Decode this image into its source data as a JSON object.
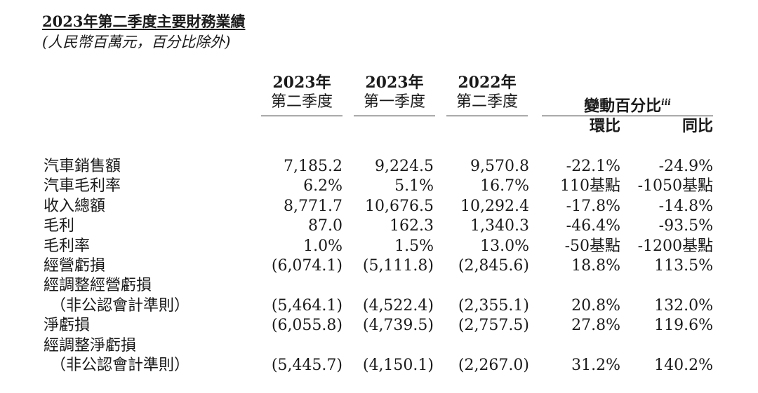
{
  "title": "2023年第二季度主要財務業績",
  "subtitle": "(人民幣百萬元，百分比除外)",
  "columns": [
    {
      "year": "2023年",
      "quarter": "第二季度"
    },
    {
      "year": "2023年",
      "quarter": "第一季度"
    },
    {
      "year": "2022年",
      "quarter": "第二季度"
    }
  ],
  "variance": {
    "label": "變動百分比",
    "note": "iii",
    "qoq": "環比",
    "yoy": "同比"
  },
  "rows": [
    {
      "label": "汽車銷售額",
      "values": [
        "7,185.2",
        "9,224.5",
        "9,570.8",
        "-22.1%",
        "-24.9%"
      ]
    },
    {
      "label": "汽車毛利率",
      "values": [
        "6.2%",
        "5.1%",
        "16.7%",
        "110基點",
        "-1050基點"
      ]
    },
    {
      "label": "收入總額",
      "values": [
        "8,771.7",
        "10,676.5",
        "10,292.4",
        "-17.8%",
        "-14.8%"
      ]
    },
    {
      "label": "毛利",
      "values": [
        "87.0",
        "162.3",
        "1,340.3",
        "-46.4%",
        "-93.5%"
      ]
    },
    {
      "label": "毛利率",
      "values": [
        "1.0%",
        "1.5%",
        "13.0%",
        "-50基點",
        "-1200基點"
      ]
    },
    {
      "label": "經營虧損",
      "values": [
        "(6,074.1)",
        "(5,111.8)",
        "(2,845.6)",
        "18.8%",
        "113.5%"
      ]
    },
    {
      "label": "經調整經營虧損",
      "values": [
        "",
        "",
        "",
        "",
        ""
      ]
    },
    {
      "label": "（非公認會計準則）",
      "values": [
        "(5,464.1)",
        "(4,522.4)",
        "(2,355.1)",
        "20.8%",
        "132.0%"
      ]
    },
    {
      "label": "淨虧損",
      "values": [
        "(6,055.8)",
        "(4,739.5)",
        "(2,757.5)",
        "27.8%",
        "119.6%"
      ]
    },
    {
      "label": "經調整淨虧損",
      "values": [
        "",
        "",
        "",
        "",
        ""
      ]
    },
    {
      "label": "（非公認會計準則）",
      "values": [
        "(5,445.7)",
        "(4,150.1)",
        "(2,267.0)",
        "31.2%",
        "140.2%"
      ]
    }
  ]
}
